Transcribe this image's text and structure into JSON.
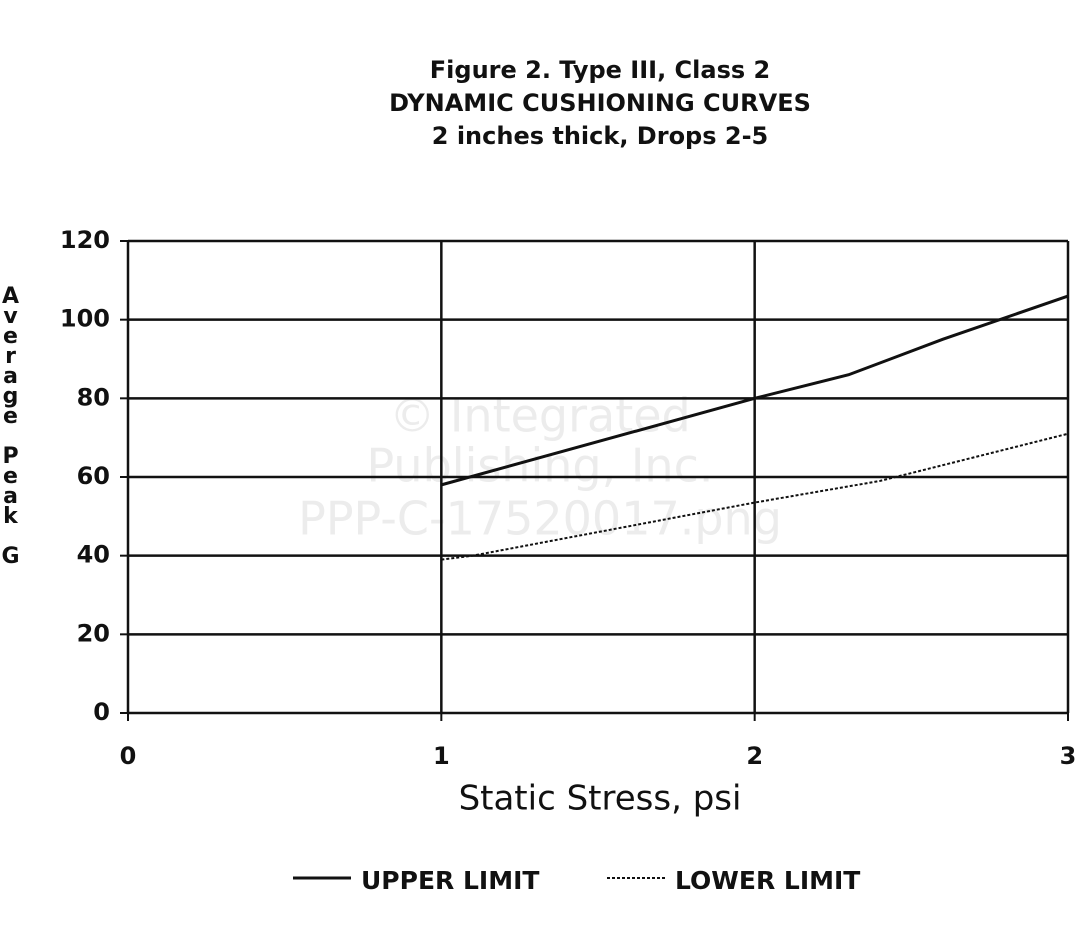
{
  "chart_data": {
    "type": "line",
    "title": "Figure 2.  Type III, Class 2",
    "subtitle": [
      "DYNAMIC CUSHIONING CURVES",
      "2 inches thick, Drops 2-5"
    ],
    "x_label": "Static Stress, psi",
    "y_label": "Average Peak G",
    "watermark": [
      "© Integrated",
      "Publishing, Inc.",
      "PPP-C-17520017.png"
    ],
    "xlim": [
      0,
      3
    ],
    "xticks": [
      0,
      1,
      2,
      3
    ],
    "ylim": [
      0,
      120
    ],
    "yticks": [
      0,
      20,
      40,
      60,
      80,
      100,
      120
    ],
    "grid": true,
    "series": [
      {
        "name": "UPPER LIMIT",
        "color": "#111111",
        "style": "solid",
        "x": [
          1,
          1.5,
          2,
          2.3,
          2.6,
          3
        ],
        "values": [
          58,
          69,
          80,
          86,
          95,
          106
        ]
      },
      {
        "name": "LOWER LIMIT",
        "color": "#111111",
        "style": "dotted",
        "x": [
          1,
          1.1,
          1.5,
          2,
          2.4,
          3
        ],
        "values": [
          39,
          40,
          46,
          53.5,
          59,
          71
        ]
      }
    ]
  }
}
